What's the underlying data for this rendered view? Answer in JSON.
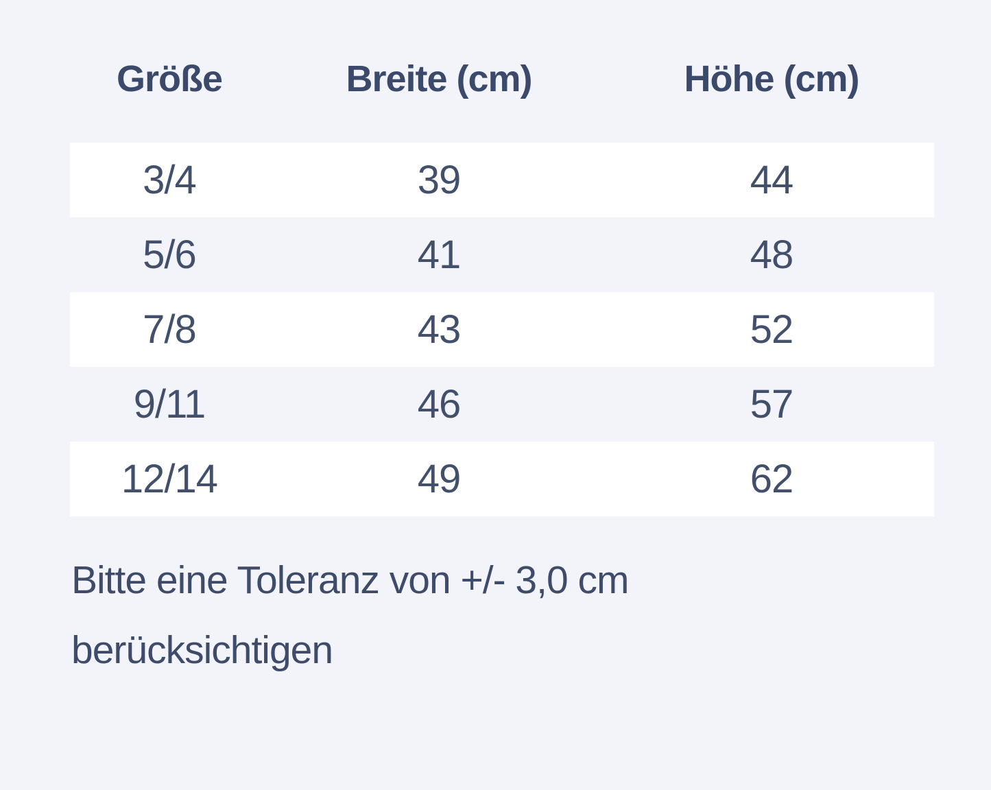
{
  "page": {
    "background_color": "#f2f4f9",
    "stripe_color": "#ffffff",
    "header_text_color": "#3b4a6b",
    "body_text_color": "#43506c"
  },
  "chart_data": {
    "type": "table",
    "columns": [
      "Größe",
      "Breite (cm)",
      "Höhe (cm)"
    ],
    "rows": [
      [
        "3/4",
        39,
        44
      ],
      [
        "5/6",
        41,
        48
      ],
      [
        "7/8",
        43,
        52
      ],
      [
        "9/11",
        46,
        57
      ],
      [
        "12/14",
        49,
        62
      ]
    ],
    "note": "Bitte eine Toleranz von +/- 3,0 cm berücksichtigen"
  },
  "note": {
    "line1": "Bitte eine Toleranz von +/- 3,0 cm",
    "line2": "berücksichtigen"
  }
}
